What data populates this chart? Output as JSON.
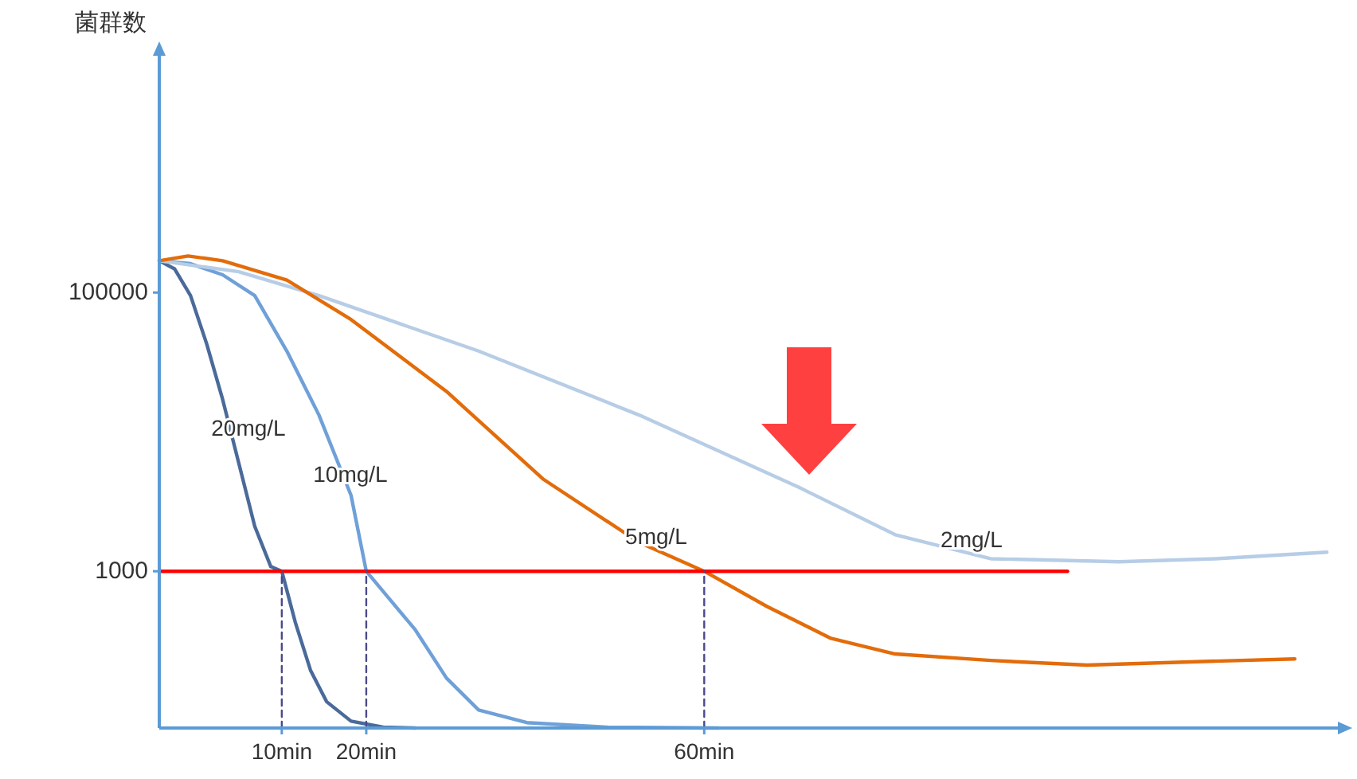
{
  "chart_data": {
    "type": "line",
    "ylabel": "菌群数",
    "log": "y",
    "grid": false,
    "legend": false,
    "marker": "none",
    "xlim": [
      -4.5,
      135
    ],
    "ylim": [
      75,
      5000000
    ],
    "xticks": [
      {
        "value": 10,
        "label": "10min"
      },
      {
        "value": 20,
        "label": "20min"
      },
      {
        "value": 60,
        "label": "60min"
      }
    ],
    "yticks": [
      1000,
      100000
    ],
    "series": [
      {
        "name": "20mg/L",
        "color": "#4a6a9a",
        "x": [
          -4.5,
          -2.7,
          -0.8,
          1.1,
          3.0,
          4.9,
          6.8,
          8.7,
          10,
          11.6,
          13.4,
          15.3,
          18.2,
          22,
          25.8
        ],
        "values": [
          169000,
          148000,
          95000,
          43000,
          17100,
          6000,
          2100,
          1080,
          1000,
          430,
          195,
          116,
          84,
          76,
          75
        ]
      },
      {
        "name": "10mg/L",
        "color": "#6fa0d8",
        "x": [
          -4.5,
          -0.8,
          3.0,
          6.8,
          10.6,
          14.4,
          18.2,
          20,
          25.8,
          29.5,
          33.3,
          39,
          48.5,
          61.7
        ],
        "values": [
          169000,
          161000,
          134000,
          95000,
          38000,
          13200,
          3500,
          1000,
          380,
          171,
          101,
          82,
          76,
          75
        ]
      },
      {
        "name": "2mg/L",
        "color": "#b7cde6",
        "x": [
          -4.5,
          4.9,
          14.4,
          33.3,
          52.3,
          71.2,
          82.6,
          93.9,
          109.1,
          120.5,
          133.7
        ],
        "values": [
          169000,
          141000,
          95000,
          38000,
          13200,
          4000,
          1830,
          1230,
          1170,
          1230,
          1370
        ]
      },
      {
        "name": "5mg/L",
        "color": "#e36c0a",
        "x": [
          -4.5,
          -1.1,
          3.0,
          10.6,
          18.2,
          29.5,
          40.9,
          52.3,
          60,
          67.4,
          75,
          82.6,
          93.9,
          105.3,
          116.7,
          129.9
        ],
        "values": [
          169000,
          183000,
          169000,
          123000,
          64000,
          19500,
          4600,
          1610,
          1000,
          560,
          330,
          255,
          229,
          212,
          223,
          235
        ]
      },
      {
        "color": "#ff0000",
        "x": [
          -4.5,
          103
        ],
        "values": [
          1000,
          1000
        ]
      },
      {
        "color": "#4a4a8a",
        "line_style": "dashed",
        "x": [
          10,
          10
        ],
        "values": [
          75,
          1000
        ]
      },
      {
        "color": "#4a4a8a",
        "line_style": "dashed",
        "x": [
          20,
          20
        ],
        "values": [
          75,
          1000
        ]
      },
      {
        "color": "#4a4a8a",
        "line_style": "dashed",
        "x": [
          60,
          60
        ],
        "values": [
          75,
          1000
        ]
      }
    ]
  }
}
